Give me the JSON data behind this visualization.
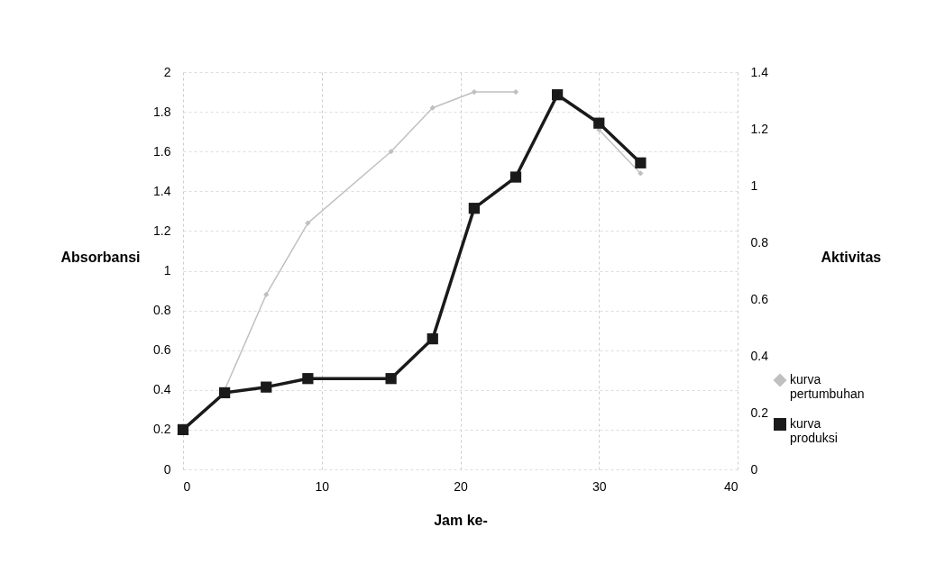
{
  "chart_data": {
    "type": "line",
    "xlabel": "Jam ke-",
    "ylabel": "Absorbansi",
    "y2label": "Aktivitas",
    "x": [
      0,
      3,
      6,
      9,
      15,
      18,
      21,
      24,
      27,
      30,
      33
    ],
    "series": [
      {
        "name": "kurva pertumbuhan",
        "color": "#c0c0c0",
        "marker": "diamond",
        "values": [
          null,
          0.4,
          0.88,
          1.24,
          1.6,
          1.82,
          1.9,
          1.9,
          null,
          1.71,
          1.49
        ]
      },
      {
        "name": "kurva produksi",
        "color": "#1a1a1a",
        "marker": "square",
        "axis": "y2",
        "values": [
          0.14,
          0.27,
          0.29,
          0.32,
          0.32,
          0.46,
          0.92,
          1.03,
          1.32,
          1.22,
          1.08
        ]
      }
    ],
    "xlim": [
      0,
      40
    ],
    "xticks": [
      0,
      10,
      20,
      30,
      40
    ],
    "ylim": [
      0,
      2
    ],
    "yticks": [
      0,
      0.2,
      0.4,
      0.6,
      0.8,
      1,
      1.2,
      1.4,
      1.6,
      1.8,
      2
    ],
    "y2lim": [
      0,
      1.4
    ],
    "y2ticks": [
      0,
      0.2,
      0.4,
      0.6,
      0.8,
      1,
      1.2,
      1.4
    ],
    "grid": true,
    "legend": "right"
  }
}
